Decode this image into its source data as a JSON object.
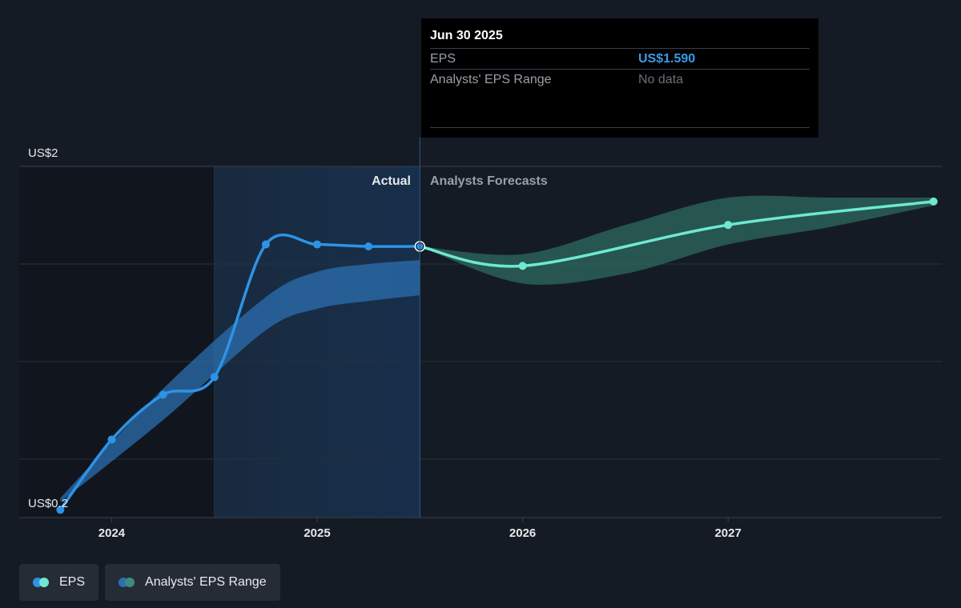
{
  "colors": {
    "background": "#151b24",
    "eps_actual": "#2e93e6",
    "eps_forecast": "#6ee8d2",
    "range_actual": "#2b6fb0",
    "range_forecast": "#2f6e63",
    "text_muted": "#9aa0a8"
  },
  "tooltip": {
    "date": "Jun 30 2025",
    "rows": [
      {
        "label": "EPS",
        "value": "US$1.590"
      },
      {
        "label": "Analysts' EPS Range",
        "value": "No data"
      }
    ]
  },
  "sections": {
    "actual": "Actual",
    "forecast": "Analysts Forecasts"
  },
  "legend": [
    {
      "label": "EPS",
      "icon": "eps-dots-icon",
      "colors": [
        "#2e93e6",
        "#6ee8d2"
      ]
    },
    {
      "label": "Analysts' EPS Range",
      "icon": "range-dots-icon",
      "colors": [
        "#2b6fb0",
        "#3c8c7e"
      ]
    }
  ],
  "chart_data": {
    "type": "line",
    "y_axis": {
      "ticks": [
        "US$2",
        "US$0.2"
      ],
      "ylim": [
        0.2,
        2
      ],
      "grid": true
    },
    "x_axis": {
      "ticks": [
        "2024",
        "2025",
        "2026",
        "2027"
      ],
      "tick_values": [
        2024,
        2025,
        2026,
        2027
      ],
      "xlim": [
        2023.55,
        2028.04
      ]
    },
    "highlight_region": [
      2024.5,
      2025.5
    ],
    "series": [
      {
        "name": "EPS",
        "kind": "actual",
        "x": [
          2023.75,
          2024.0,
          2024.25,
          2024.5,
          2024.75,
          2025.0,
          2025.25,
          2025.5
        ],
        "y": [
          0.24,
          0.6,
          0.83,
          0.92,
          1.6,
          1.6,
          1.59,
          1.59
        ]
      },
      {
        "name": "EPS",
        "kind": "forecast",
        "x": [
          2025.5,
          2026.0,
          2027.0,
          2028.0
        ],
        "y": [
          1.59,
          1.49,
          1.7,
          1.82
        ]
      }
    ],
    "range": [
      {
        "name": "Analysts' EPS Range",
        "kind": "actual",
        "x": [
          2023.75,
          2024.25,
          2024.75,
          2025.0,
          2025.25,
          2025.5
        ],
        "low": [
          0.28,
          0.7,
          1.16,
          1.27,
          1.31,
          1.34
        ],
        "high": [
          0.3,
          0.86,
          1.33,
          1.46,
          1.5,
          1.52
        ]
      },
      {
        "name": "Analysts' EPS Range",
        "kind": "forecast",
        "x": [
          2025.5,
          2026.0,
          2026.5,
          2027.0,
          2027.5,
          2028.0
        ],
        "low": [
          1.59,
          1.4,
          1.45,
          1.6,
          1.69,
          1.8
        ],
        "high": [
          1.59,
          1.55,
          1.7,
          1.84,
          1.84,
          1.84
        ]
      }
    ],
    "tooltip_x": 2025.5
  }
}
